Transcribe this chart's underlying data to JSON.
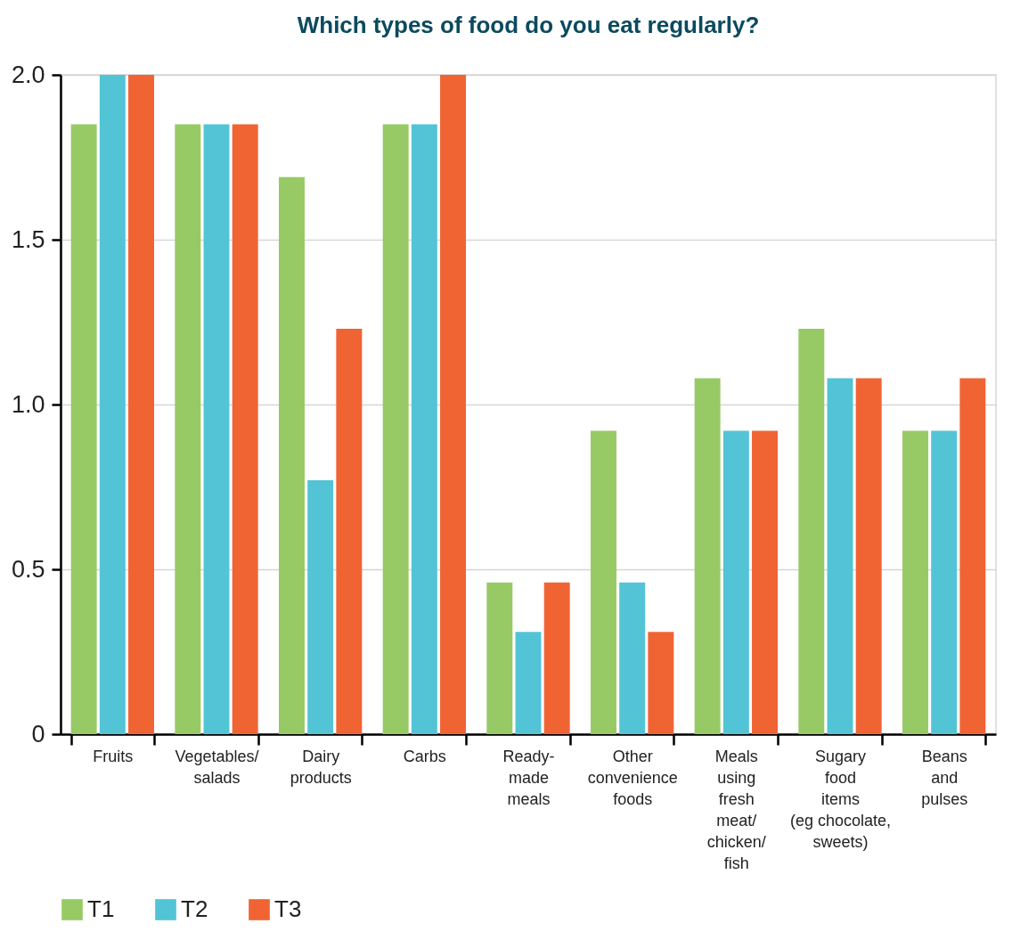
{
  "chart_data": {
    "type": "bar",
    "title": "Which types of food do you eat regularly?",
    "categories": [
      "Fruits",
      "Vegetables/\nsalads",
      "Dairy\nproducts",
      "Carbs",
      "Ready-\nmade\nmeals",
      "Other\nconvenience\nfoods",
      "Meals\nusing\nfresh\nmeat/\nchicken/\nfish",
      "Sugary\nfood\nitems\n(eg chocolate,\nsweets)",
      "Beans\nand\npulses"
    ],
    "series": [
      {
        "name": "T1",
        "color": "#97ca65",
        "values": [
          1.85,
          1.85,
          1.69,
          1.85,
          0.46,
          0.92,
          1.08,
          1.23,
          0.92
        ]
      },
      {
        "name": "T2",
        "color": "#53c4d6",
        "values": [
          2.0,
          1.85,
          0.77,
          1.85,
          0.31,
          0.46,
          0.92,
          1.08,
          0.92
        ]
      },
      {
        "name": "T3",
        "color": "#f06434",
        "values": [
          2.0,
          1.85,
          1.23,
          2.0,
          0.46,
          0.31,
          0.92,
          1.08,
          1.08
        ]
      }
    ],
    "ylim": [
      0,
      2
    ],
    "yticks": [
      0,
      0.5,
      {
        "value": 1,
        "label": "1.0"
      },
      1.5,
      {
        "value": 2,
        "label": "2.0"
      }
    ],
    "grid": "y",
    "legend": "bottom left"
  }
}
